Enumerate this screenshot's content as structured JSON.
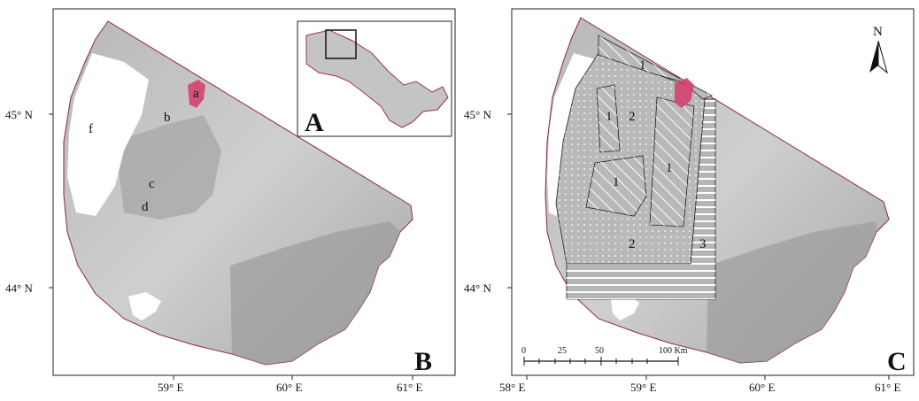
{
  "panel_b": {
    "panel_letter": "B",
    "lat_labels": [
      "45° N",
      "44° N"
    ],
    "lon_labels": [
      "59° E",
      "60° E",
      "61° E"
    ],
    "point_labels": {
      "a": "a",
      "b": "b",
      "c": "c",
      "d": "d",
      "f": "f"
    }
  },
  "inset": {
    "panel_letter": "A"
  },
  "panel_c": {
    "panel_letter": "C",
    "lat_labels": [
      "45° N",
      "44° N"
    ],
    "lon_labels": [
      "58° E",
      "59° E",
      "60° E",
      "61° E"
    ],
    "zone_labels": {
      "z1_top": "1",
      "z1_left": "1",
      "z2_upper": "2",
      "z1_mid_left": "1",
      "z1_right": "1",
      "z2_lower": "2",
      "z3": "3"
    },
    "north_letter": "N",
    "scale_ticks": [
      "0",
      "25",
      "50",
      "100 Km"
    ]
  },
  "colors": {
    "land": "#c9c9c9",
    "land_dark": "#9a9a9a",
    "delta": "#d8d8d8",
    "wetland": "#d63a6a",
    "sea": "#ffffff",
    "coast": "#8a2a3a"
  }
}
